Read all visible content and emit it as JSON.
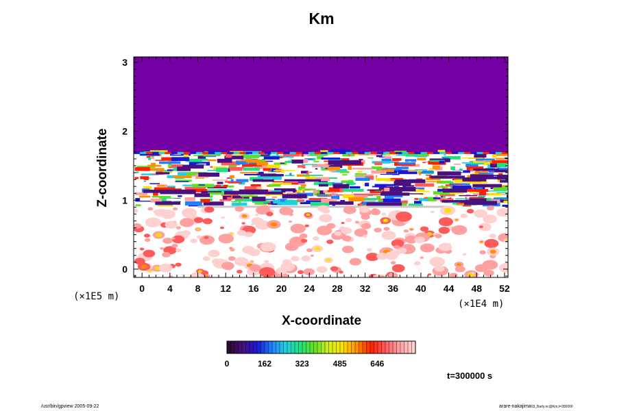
{
  "chart_data": {
    "type": "heatmap",
    "title": "Km",
    "xlabel": "X-coordinate",
    "ylabel": "Z-coordinate",
    "x_scale_label": "(×1E4 m)",
    "y_scale_label": "(×1E5 m)",
    "xlim": [
      -1.2,
      52.5
    ],
    "ylim": [
      -0.12,
      3.08
    ],
    "x_ticks": [
      0,
      4,
      8,
      12,
      16,
      20,
      24,
      28,
      32,
      36,
      40,
      44,
      48,
      52
    ],
    "y_ticks": [
      0,
      1,
      2,
      3
    ],
    "colorbar": {
      "ticks": [
        0,
        162,
        323,
        485,
        646
      ],
      "range": [
        0,
        810
      ],
      "colors": [
        "#2a0a30",
        "#4a1080",
        "#1818d8",
        "#2080ff",
        "#20d0e0",
        "#20e080",
        "#60e020",
        "#d0f020",
        "#ffe000",
        "#ff9000",
        "#ff2000",
        "#ff5a5a",
        "#ffa0a0",
        "#ffd0d0"
      ]
    },
    "regions": [
      {
        "name": "upper-uniform-layer",
        "z_range": [
          1.68,
          3.08
        ],
        "value": 0,
        "color": "#7400a4"
      },
      {
        "name": "turbulent-band",
        "z_range": [
          0.9,
          1.68
        ]
      },
      {
        "name": "lower-layer",
        "z_range": [
          -0.12,
          0.9
        ]
      }
    ]
  },
  "time_label": "t=300000 s",
  "footer": {
    "left": "/usr/bin/gpview 2005-09-22",
    "right_main": "arare-nakajima",
    "right_sub": "03_Barly.nc@Km,t=300000"
  }
}
